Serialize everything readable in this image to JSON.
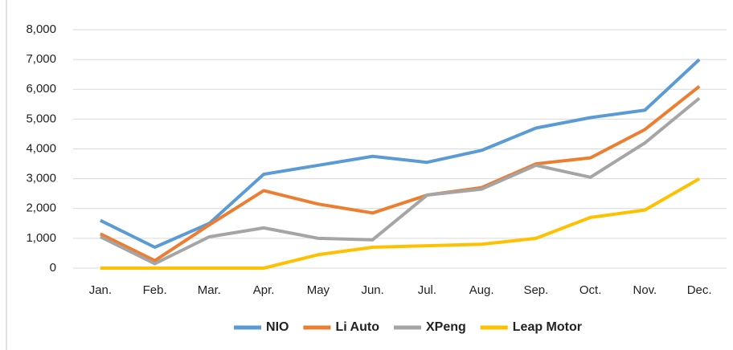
{
  "chart_data": {
    "type": "line",
    "categories": [
      "Jan.",
      "Feb.",
      "Mar.",
      "Apr.",
      "May",
      "Jun.",
      "Jul.",
      "Aug.",
      "Sep.",
      "Oct.",
      "Nov.",
      "Dec."
    ],
    "series": [
      {
        "name": "NIO",
        "color": "#5b9bd5",
        "values": [
          1600,
          700,
          1500,
          3150,
          3450,
          3750,
          3550,
          3950,
          4700,
          5050,
          5300,
          7000
        ]
      },
      {
        "name": "Li Auto",
        "color": "#ed7d31",
        "values": [
          1150,
          250,
          1450,
          2600,
          2150,
          1850,
          2450,
          2700,
          3500,
          3700,
          4650,
          6100
        ]
      },
      {
        "name": "XPeng",
        "color": "#a5a5a5",
        "values": [
          1050,
          150,
          1050,
          1350,
          1000,
          950,
          2450,
          2650,
          3450,
          3050,
          4200,
          5700
        ]
      },
      {
        "name": "Leap Motor",
        "color": "#ffc000",
        "values": [
          0,
          0,
          0,
          0,
          450,
          700,
          750,
          800,
          1000,
          1700,
          1950,
          3000
        ]
      }
    ],
    "ylim": [
      0,
      8000
    ],
    "yticks": [
      0,
      {
        "value": 1000,
        "label": "1,000"
      },
      {
        "value": 2000,
        "label": "2,000"
      },
      {
        "value": 3000,
        "label": "3,000"
      },
      {
        "value": 4000,
        "label": "4,000"
      },
      {
        "value": 5000,
        "label": "5,000"
      },
      {
        "value": 6000,
        "label": "6,000"
      },
      {
        "value": 7000,
        "label": "7,000"
      },
      {
        "value": 8000,
        "label": "8,000"
      }
    ],
    "grid": true,
    "legend": "bottom"
  }
}
